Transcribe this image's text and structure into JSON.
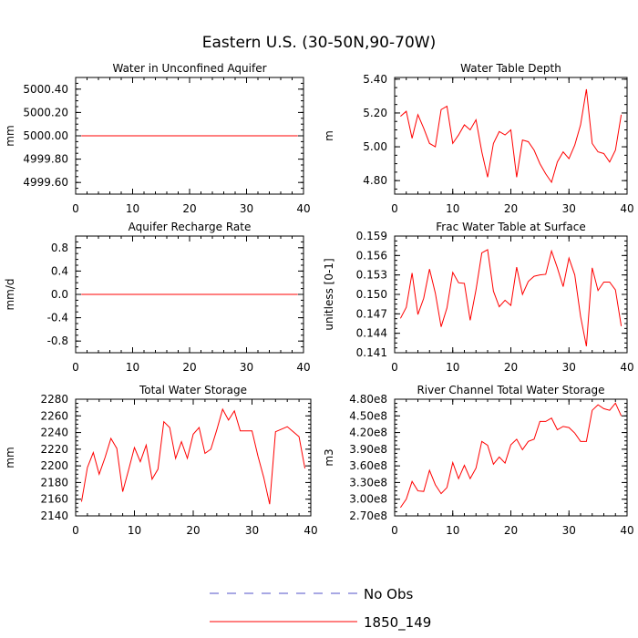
{
  "figure": {
    "title": "Eastern U.S. (30-50N,90-70W)"
  },
  "legend": {
    "entries": [
      {
        "label": "No Obs",
        "color": "#5050c8",
        "style": "dashed"
      },
      {
        "label": "1850_149",
        "color": "#ff0000",
        "style": "solid"
      }
    ]
  },
  "chart_data": [
    {
      "type": "line",
      "title": "Water in Unconfined Aquifer",
      "xlabel": "",
      "ylabel": "mm",
      "xlim": [
        0,
        40
      ],
      "ylim": [
        4999.5,
        5000.5
      ],
      "xticks": [
        0,
        10,
        20,
        30,
        40
      ],
      "xtick_labels": [
        "0",
        "10",
        "20",
        "30",
        "40"
      ],
      "yticks": [
        4999.6,
        4999.8,
        5000.0,
        5000.2,
        5000.4
      ],
      "ytick_labels": [
        "4999.60",
        "4999.80",
        "5000.00",
        "5000.20",
        "5000.40"
      ],
      "series": [
        {
          "name": "1850_149",
          "color": "#ff0000",
          "x": [
            1,
            39
          ],
          "values": [
            5000.0,
            5000.0
          ]
        }
      ]
    },
    {
      "type": "line",
      "title": "Water Table Depth",
      "xlabel": "",
      "ylabel": "m",
      "xlim": [
        0,
        40
      ],
      "ylim": [
        4.72,
        5.41
      ],
      "xticks": [
        0,
        10,
        20,
        30,
        40
      ],
      "xtick_labels": [
        "0",
        "10",
        "20",
        "30",
        "40"
      ],
      "yticks": [
        4.8,
        5.0,
        5.2,
        5.4
      ],
      "ytick_labels": [
        "4.80",
        "5.00",
        "5.20",
        "5.40"
      ],
      "series": [
        {
          "name": "1850_149",
          "color": "#ff0000",
          "x": [
            1,
            2,
            3,
            4,
            5,
            6,
            7,
            8,
            9,
            10,
            11,
            12,
            13,
            14,
            15,
            16,
            17,
            18,
            19,
            20,
            21,
            22,
            23,
            24,
            25,
            26,
            27,
            28,
            29,
            30,
            31,
            32,
            33,
            34,
            35,
            36,
            37,
            38,
            39
          ],
          "values": [
            5.18,
            5.21,
            5.05,
            5.19,
            5.11,
            5.02,
            5.0,
            5.22,
            5.24,
            5.02,
            5.07,
            5.13,
            5.1,
            5.16,
            4.97,
            4.82,
            5.02,
            5.09,
            5.07,
            5.1,
            4.82,
            5.04,
            5.03,
            4.98,
            4.9,
            4.84,
            4.79,
            4.91,
            4.97,
            4.93,
            5.01,
            5.13,
            5.34,
            5.02,
            4.97,
            4.96,
            4.91,
            4.98,
            5.19
          ]
        }
      ]
    },
    {
      "type": "line",
      "title": "Aquifer Recharge Rate",
      "xlabel": "",
      "ylabel": "mm/d",
      "xlim": [
        0,
        40
      ],
      "ylim": [
        -1.0,
        1.0
      ],
      "xticks": [
        0,
        10,
        20,
        30,
        40
      ],
      "xtick_labels": [
        "0",
        "10",
        "20",
        "30",
        "40"
      ],
      "yticks": [
        -0.8,
        -0.4,
        0.0,
        0.4,
        0.8
      ],
      "ytick_labels": [
        "-0.8",
        "-0.4",
        "0.0",
        "0.4",
        "0.8"
      ],
      "series": [
        {
          "name": "1850_149",
          "color": "#ff0000",
          "x": [
            1,
            39
          ],
          "values": [
            0.0,
            0.0
          ]
        }
      ]
    },
    {
      "type": "line",
      "title": "Frac Water Table at Surface",
      "xlabel": "",
      "ylabel": "unitless [0-1]",
      "xlim": [
        0,
        40
      ],
      "ylim": [
        0.141,
        0.159
      ],
      "xticks": [
        0,
        10,
        20,
        30,
        40
      ],
      "xtick_labels": [
        "0",
        "10",
        "20",
        "30",
        "40"
      ],
      "yticks": [
        0.141,
        0.144,
        0.147,
        0.15,
        0.153,
        0.156,
        0.159
      ],
      "ytick_labels": [
        "0.141",
        "0.144",
        "0.147",
        "0.150",
        "0.153",
        "0.156",
        "0.159"
      ],
      "series": [
        {
          "name": "1850_149",
          "color": "#ff0000",
          "x": [
            1,
            2,
            3,
            4,
            5,
            6,
            7,
            8,
            9,
            10,
            11,
            12,
            13,
            14,
            15,
            16,
            17,
            18,
            19,
            20,
            21,
            22,
            23,
            24,
            25,
            26,
            27,
            28,
            29,
            30,
            31,
            32,
            33,
            34,
            35,
            36,
            37,
            38,
            39
          ],
          "values": [
            0.1463,
            0.148,
            0.1533,
            0.1469,
            0.1494,
            0.1539,
            0.1502,
            0.145,
            0.1479,
            0.1534,
            0.1518,
            0.1517,
            0.146,
            0.1507,
            0.1564,
            0.1569,
            0.1505,
            0.1481,
            0.1491,
            0.1483,
            0.1542,
            0.15,
            0.152,
            0.1528,
            0.153,
            0.1531,
            0.1567,
            0.1541,
            0.1512,
            0.1556,
            0.153,
            0.1466,
            0.142,
            0.1541,
            0.1506,
            0.1519,
            0.1519,
            0.1507,
            0.1451
          ]
        }
      ]
    },
    {
      "type": "line",
      "title": "Total Water Storage",
      "xlabel": "",
      "ylabel": "mm",
      "xlim": [
        0,
        40
      ],
      "ylim": [
        2140,
        2280
      ],
      "xticks": [
        0,
        10,
        20,
        30,
        40
      ],
      "xtick_labels": [
        "0",
        "10",
        "20",
        "30",
        "40"
      ],
      "yticks": [
        2140,
        2160,
        2180,
        2200,
        2220,
        2240,
        2260,
        2280
      ],
      "ytick_labels": [
        "2140",
        "2160",
        "2180",
        "2200",
        "2220",
        "2240",
        "2260",
        "2280"
      ],
      "series": [
        {
          "name": "1850_149",
          "color": "#ff0000",
          "x": [
            1,
            2,
            3,
            4,
            5,
            6,
            7,
            8,
            9,
            10,
            11,
            12,
            13,
            14,
            15,
            16,
            17,
            18,
            19,
            20,
            21,
            22,
            23,
            24,
            25,
            26,
            27,
            28,
            29,
            30,
            31,
            32,
            33,
            34,
            35,
            36,
            37,
            38,
            39
          ],
          "values": [
            2157,
            2198,
            2216,
            2190,
            2210,
            2233,
            2221,
            2169,
            2195,
            2222,
            2205,
            2225,
            2184,
            2196,
            2253,
            2246,
            2209,
            2229,
            2209,
            2238,
            2246,
            2215,
            2220,
            2243,
            2268,
            2255,
            2266,
            2242,
            2242,
            2242,
            2212,
            2186,
            2154,
            2241,
            2244,
            2247,
            2241,
            2235,
            2197
          ]
        }
      ]
    },
    {
      "type": "line",
      "title": "River Channel Total Water Storage",
      "xlabel": "",
      "ylabel": "m3",
      "xlim": [
        0,
        40
      ],
      "ylim": [
        270000000,
        480000000
      ],
      "xticks": [
        0,
        10,
        20,
        30,
        40
      ],
      "xtick_labels": [
        "0",
        "10",
        "20",
        "30",
        "40"
      ],
      "yticks": [
        270000000,
        300000000,
        330000000,
        360000000,
        390000000,
        420000000,
        450000000,
        480000000
      ],
      "ytick_labels": [
        "2.70e8",
        "3.00e8",
        "3.30e8",
        "3.60e8",
        "3.90e8",
        "4.20e8",
        "4.50e8",
        "4.80e8"
      ],
      "series": [
        {
          "name": "1850_149",
          "color": "#ff0000",
          "x": [
            1,
            2,
            3,
            4,
            5,
            6,
            7,
            8,
            9,
            10,
            11,
            12,
            13,
            14,
            15,
            16,
            17,
            18,
            19,
            20,
            21,
            22,
            23,
            24,
            25,
            26,
            27,
            28,
            29,
            30,
            31,
            32,
            33,
            34,
            35,
            36,
            37,
            38,
            39
          ],
          "values": [
            285000000,
            300000000,
            332000000,
            315000000,
            314000000,
            352000000,
            326000000,
            310000000,
            321000000,
            366000000,
            337000000,
            361000000,
            337000000,
            356000000,
            404000000,
            397000000,
            363000000,
            376000000,
            365000000,
            398000000,
            408000000,
            389000000,
            404000000,
            408000000,
            440000000,
            440000000,
            446000000,
            425000000,
            431000000,
            429000000,
            419000000,
            404000000,
            404000000,
            460000000,
            470000000,
            463000000,
            460000000,
            473000000,
            450000000
          ]
        }
      ]
    }
  ]
}
